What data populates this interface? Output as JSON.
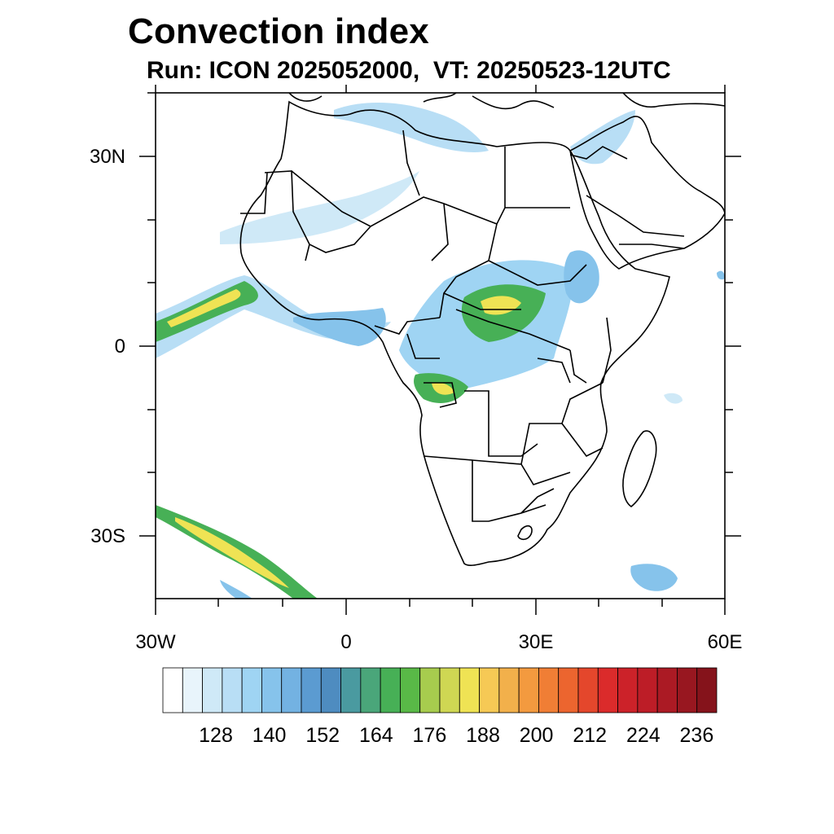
{
  "figure": {
    "title": "Convection index",
    "subtitle": "Run: ICON 2025052000,  VT: 20250523-12UTC"
  },
  "map": {
    "lat_ticks": [
      "30N",
      "0",
      "30S"
    ],
    "lon_ticks": [
      "30W",
      "0",
      "30E",
      "60E"
    ],
    "extent": {
      "lon": [
        -30,
        60
      ],
      "lat": [
        -40,
        40
      ]
    }
  },
  "colorbar": {
    "labels": [
      "128",
      "140",
      "152",
      "164",
      "176",
      "188",
      "200",
      "212",
      "224",
      "236"
    ],
    "colors": [
      "#ffffff",
      "#e8f4fb",
      "#cfe9f7",
      "#b8def5",
      "#9fd4f3",
      "#86c3eb",
      "#73b2e2",
      "#5b9bd1",
      "#4e8cc0",
      "#4a9aa0",
      "#4aa67a",
      "#47b056",
      "#59b947",
      "#a7cc4e",
      "#cfd753",
      "#efe354",
      "#f6c955",
      "#f2b04b",
      "#f39a3f",
      "#f07e35",
      "#ec652f",
      "#e4472c",
      "#db2b2b",
      "#cc2229",
      "#bd1d27",
      "#ab1a24",
      "#981720",
      "#85131b"
    ]
  }
}
